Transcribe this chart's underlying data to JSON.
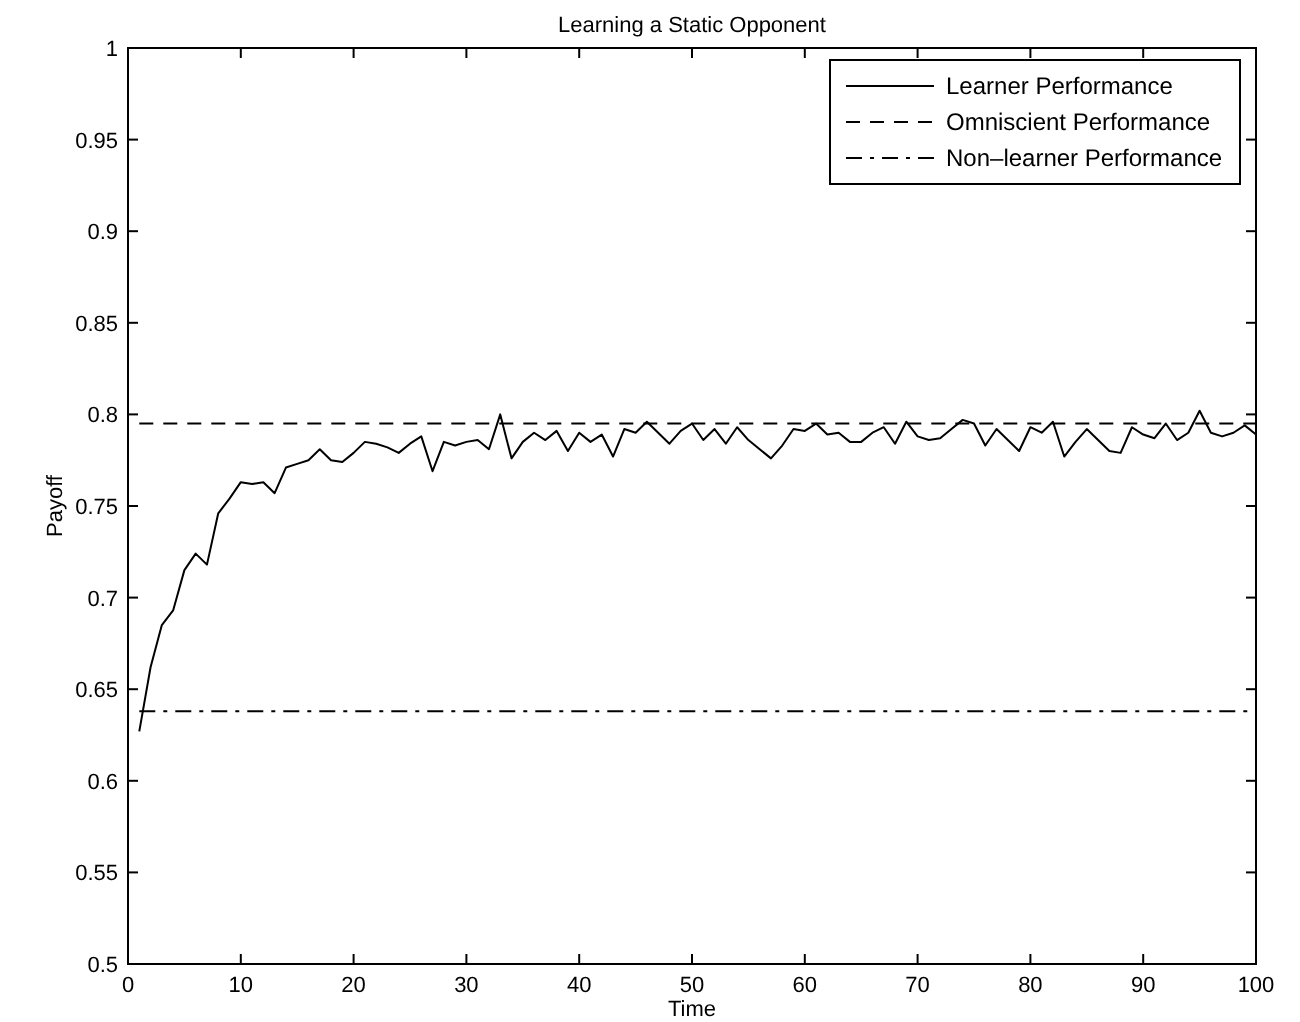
{
  "chart_data": {
    "type": "line",
    "title": "Learning a Static Opponent",
    "xlabel": "Time",
    "ylabel": "Payoff",
    "xlim": [
      0,
      100
    ],
    "xticks": [
      0,
      10,
      20,
      30,
      40,
      50,
      60,
      70,
      80,
      90,
      100
    ],
    "ylim": [
      0.5,
      1
    ],
    "yticks": [
      0.5,
      0.55,
      0.6,
      0.65,
      0.7,
      0.75,
      0.8,
      0.85,
      0.9,
      0.95,
      1
    ],
    "grid": false,
    "legend": "top right",
    "marker": "none",
    "x": [
      1,
      2,
      3,
      4,
      5,
      6,
      7,
      8,
      9,
      10,
      11,
      12,
      13,
      14,
      15,
      16,
      17,
      18,
      19,
      20,
      21,
      22,
      23,
      24,
      25,
      26,
      27,
      28,
      29,
      30,
      31,
      32,
      33,
      34,
      35,
      36,
      37,
      38,
      39,
      40,
      41,
      42,
      43,
      44,
      45,
      46,
      47,
      48,
      49,
      50,
      51,
      52,
      53,
      54,
      55,
      56,
      57,
      58,
      59,
      60,
      61,
      62,
      63,
      64,
      65,
      66,
      67,
      68,
      69,
      70,
      71,
      72,
      73,
      74,
      75,
      76,
      77,
      78,
      79,
      80,
      81,
      82,
      83,
      84,
      85,
      86,
      87,
      88,
      89,
      90,
      91,
      92,
      93,
      94,
      95,
      96,
      97,
      98,
      99,
      100
    ],
    "series": [
      {
        "name": "Learner Performance",
        "color": "#000000",
        "line_style": "solid",
        "values": [
          0.627,
          0.662,
          0.685,
          0.693,
          0.715,
          0.724,
          0.718,
          0.746,
          0.754,
          0.763,
          0.762,
          0.763,
          0.757,
          0.771,
          0.773,
          0.775,
          0.781,
          0.775,
          0.774,
          0.779,
          0.785,
          0.784,
          0.782,
          0.779,
          0.784,
          0.788,
          0.769,
          0.785,
          0.783,
          0.785,
          0.786,
          0.781,
          0.8,
          0.776,
          0.785,
          0.79,
          0.786,
          0.791,
          0.78,
          0.79,
          0.785,
          0.789,
          0.777,
          0.792,
          0.79,
          0.796,
          0.79,
          0.784,
          0.791,
          0.795,
          0.786,
          0.792,
          0.784,
          0.793,
          0.786,
          0.781,
          0.776,
          0.783,
          0.792,
          0.791,
          0.795,
          0.789,
          0.79,
          0.785,
          0.785,
          0.79,
          0.793,
          0.784,
          0.796,
          0.788,
          0.786,
          0.787,
          0.792,
          0.797,
          0.795,
          0.783,
          0.792,
          0.786,
          0.78,
          0.793,
          0.79,
          0.796,
          0.777,
          0.785,
          0.792,
          0.786,
          0.78,
          0.779,
          0.793,
          0.789,
          0.787,
          0.795,
          0.786,
          0.79,
          0.802,
          0.79,
          0.788,
          0.79,
          0.794,
          0.789
        ]
      },
      {
        "name": "Omniscient Performance",
        "color": "#000000",
        "line_style": "dashed",
        "values": [
          0.795,
          0.795,
          0.795,
          0.795,
          0.795,
          0.795,
          0.795,
          0.795,
          0.795,
          0.795,
          0.795,
          0.795,
          0.795,
          0.795,
          0.795,
          0.795,
          0.795,
          0.795,
          0.795,
          0.795,
          0.795,
          0.795,
          0.795,
          0.795,
          0.795,
          0.795,
          0.795,
          0.795,
          0.795,
          0.795,
          0.795,
          0.795,
          0.795,
          0.795,
          0.795,
          0.795,
          0.795,
          0.795,
          0.795,
          0.795,
          0.795,
          0.795,
          0.795,
          0.795,
          0.795,
          0.795,
          0.795,
          0.795,
          0.795,
          0.795,
          0.795,
          0.795,
          0.795,
          0.795,
          0.795,
          0.795,
          0.795,
          0.795,
          0.795,
          0.795,
          0.795,
          0.795,
          0.795,
          0.795,
          0.795,
          0.795,
          0.795,
          0.795,
          0.795,
          0.795,
          0.795,
          0.795,
          0.795,
          0.795,
          0.795,
          0.795,
          0.795,
          0.795,
          0.795,
          0.795,
          0.795,
          0.795,
          0.795,
          0.795,
          0.795,
          0.795,
          0.795,
          0.795,
          0.795,
          0.795,
          0.795,
          0.795,
          0.795,
          0.795,
          0.795,
          0.795,
          0.795,
          0.795,
          0.795,
          0.795
        ]
      },
      {
        "name": "Non–learner Performance",
        "color": "#000000",
        "line_style": "dashdot",
        "values": [
          0.638,
          0.638,
          0.638,
          0.638,
          0.638,
          0.638,
          0.638,
          0.638,
          0.638,
          0.638,
          0.638,
          0.638,
          0.638,
          0.638,
          0.638,
          0.638,
          0.638,
          0.638,
          0.638,
          0.638,
          0.638,
          0.638,
          0.638,
          0.638,
          0.638,
          0.638,
          0.638,
          0.638,
          0.638,
          0.638,
          0.638,
          0.638,
          0.638,
          0.638,
          0.638,
          0.638,
          0.638,
          0.638,
          0.638,
          0.638,
          0.638,
          0.638,
          0.638,
          0.638,
          0.638,
          0.638,
          0.638,
          0.638,
          0.638,
          0.638,
          0.638,
          0.638,
          0.638,
          0.638,
          0.638,
          0.638,
          0.638,
          0.638,
          0.638,
          0.638,
          0.638,
          0.638,
          0.638,
          0.638,
          0.638,
          0.638,
          0.638,
          0.638,
          0.638,
          0.638,
          0.638,
          0.638,
          0.638,
          0.638,
          0.638,
          0.638,
          0.638,
          0.638,
          0.638,
          0.638,
          0.638,
          0.638,
          0.638,
          0.638,
          0.638,
          0.638,
          0.638,
          0.638,
          0.638,
          0.638,
          0.638,
          0.638,
          0.638,
          0.638,
          0.638,
          0.638,
          0.638,
          0.638,
          0.638,
          0.638
        ]
      }
    ]
  }
}
